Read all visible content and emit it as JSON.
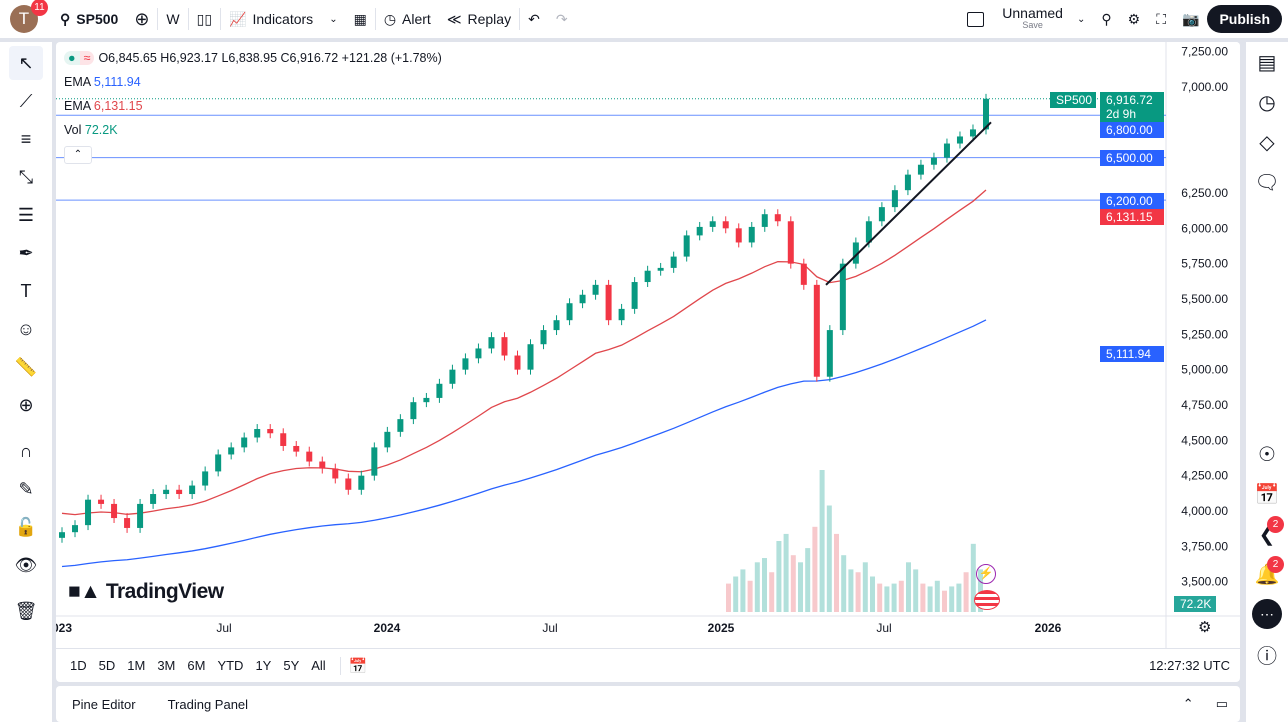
{
  "toolbar": {
    "avatar_letter": "T",
    "avatar_badge": "11",
    "symbol": "SP500",
    "interval": "W",
    "indicators": "Indicators",
    "alert": "Alert",
    "replay": "Replay",
    "layout_name": "Unnamed",
    "layout_sub": "Save",
    "publish": "Publish"
  },
  "legend": {
    "ohlc": "O6,845.65 H6,923.17 L6,838.95 C6,916.72 +121.28 (+1.78%)",
    "ema1_label": "EMA",
    "ema1_value": "5,111.94",
    "ema2_label": "EMA",
    "ema2_value": "6,131.15",
    "vol_label": "Vol",
    "vol_value": "72.2K"
  },
  "price_axis": {
    "ticks": [
      "7,250.00",
      "7,000.00",
      "6,250.00",
      "6,000.00",
      "5,750.00",
      "5,500.00",
      "5,250.00",
      "5,000.00",
      "4,750.00",
      "4,500.00",
      "4,250.00",
      "4,000.00",
      "3,750.00",
      "3,500.00"
    ],
    "symbol_tag": "SP500",
    "last_price": "6,916.72",
    "countdown": "2d 9h",
    "levels": [
      "6,800.00",
      "6,500.00",
      "6,200.00"
    ],
    "ema_red": "6,131.15",
    "ema_blue": "5,111.94",
    "volume": "72.2K"
  },
  "time_axis": [
    "2023",
    "Jul",
    "2024",
    "Jul",
    "2025",
    "Jul",
    "2026"
  ],
  "ranges": [
    "1D",
    "5D",
    "1M",
    "3M",
    "6M",
    "YTD",
    "1Y",
    "5Y",
    "All"
  ],
  "clock": "12:27:32 UTC",
  "bottom_tabs": [
    "Pine Editor",
    "Trading Panel"
  ],
  "logo": "TradingView",
  "right_badges": [
    "2",
    "2"
  ],
  "colors": {
    "up": "#089981",
    "down": "#f23645",
    "ema_red": "#e0474c",
    "ema_blue": "#2962ff",
    "level": "#2962ff"
  },
  "chart_data": {
    "type": "candlestick",
    "interval": "semi-monthly",
    "start": "2023-01",
    "end": "2025-10",
    "closes": [
      3850,
      3900,
      4080,
      4050,
      3950,
      3880,
      4050,
      4120,
      4150,
      4120,
      4180,
      4280,
      4400,
      4450,
      4520,
      4580,
      4550,
      4460,
      4420,
      4350,
      4300,
      4230,
      4150,
      4250,
      4450,
      4560,
      4650,
      4770,
      4800,
      4900,
      5000,
      5080,
      5150,
      5230,
      5100,
      5000,
      5180,
      5280,
      5350,
      5470,
      5530,
      5600,
      5350,
      5430,
      5620,
      5700,
      5720,
      5800,
      5950,
      6010,
      6050,
      6000,
      5900,
      6010,
      6100,
      6050,
      5750,
      5600,
      4950,
      5280,
      5750,
      5900,
      6050,
      6150,
      6270,
      6380,
      6450,
      6500,
      6600,
      6650,
      6700,
      6916.72
    ],
    "volumes": [
      20,
      25,
      30,
      22,
      35,
      38,
      28,
      50,
      55,
      40,
      35,
      45,
      60,
      100,
      75,
      55,
      40,
      30,
      28,
      35,
      25,
      20,
      18,
      20,
      22,
      35,
      30,
      20,
      18,
      22,
      15,
      18,
      20,
      28,
      48,
      30
    ],
    "levels": [
      6800,
      6500,
      6200
    ],
    "trendline": [
      [
        "2025-04",
        5600
      ],
      [
        "2025-10",
        6750
      ]
    ],
    "ylim": [
      3400,
      7350
    ]
  }
}
